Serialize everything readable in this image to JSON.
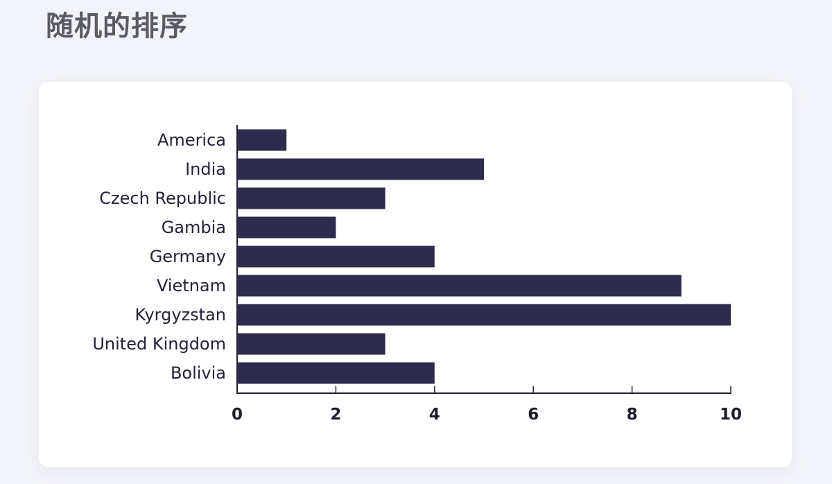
{
  "page": {
    "title": "随机的排序"
  },
  "chart_data": {
    "type": "bar",
    "orientation": "horizontal",
    "categories": [
      "America",
      "India",
      "Czech Republic",
      "Gambia",
      "Germany",
      "Vietnam",
      "Kyrgyzstan",
      "United Kingdom",
      "Bolivia"
    ],
    "values": [
      1,
      5,
      3,
      2,
      4,
      9,
      10,
      3,
      4
    ],
    "xlim": [
      0,
      10
    ],
    "xticks": [
      0,
      2,
      4,
      6,
      8,
      10
    ],
    "grid": false,
    "bar_color": "#2e2c4c",
    "title": "",
    "xlabel": "",
    "ylabel": ""
  }
}
